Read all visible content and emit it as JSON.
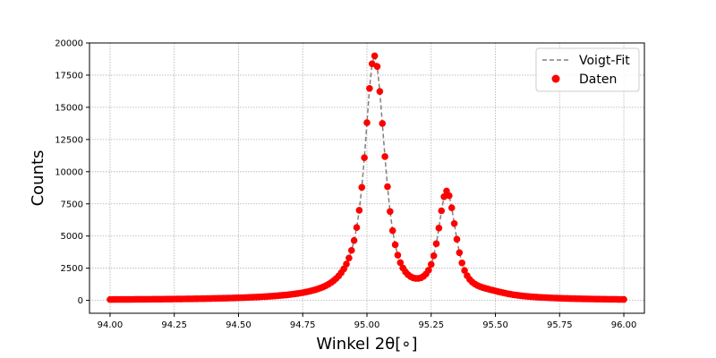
{
  "chart_data": {
    "type": "scatter",
    "xlabel": "Winkel 2θ[∘]",
    "ylabel": "Counts",
    "xlim": [
      93.92,
      96.08
    ],
    "ylim": [
      -1000,
      20000
    ],
    "xticks": [
      94.0,
      94.25,
      94.5,
      94.75,
      95.0,
      95.25,
      95.5,
      95.75,
      96.0
    ],
    "xtick_labels": [
      "94.00",
      "94.25",
      "94.50",
      "94.75",
      "95.00",
      "95.25",
      "95.50",
      "95.75",
      "96.00"
    ],
    "yticks": [
      0,
      2500,
      5000,
      7500,
      10000,
      12500,
      15000,
      17500,
      20000
    ],
    "ytick_labels": [
      "0",
      "2500",
      "5000",
      "7500",
      "10000",
      "12500",
      "15000",
      "17500",
      "20000"
    ],
    "grid": true,
    "legend_position": "top-right",
    "legend": [
      "Voigt-Fit",
      "Daten"
    ],
    "x_start": 94.0,
    "x_step": 0.01,
    "series": [
      {
        "name": "Voigt-Fit",
        "style": "dashed-line",
        "color": "#808080",
        "values": [
          69,
          69,
          70,
          71,
          72,
          73,
          74,
          75,
          76,
          77,
          79,
          80,
          81,
          83,
          84,
          86,
          87,
          89,
          90,
          92,
          94,
          96,
          98,
          100,
          102,
          104,
          106,
          108,
          111,
          113,
          116,
          119,
          121,
          124,
          127,
          131,
          134,
          137,
          141,
          145,
          149,
          153,
          157,
          162,
          167,
          172,
          177,
          182,
          188,
          194,
          201,
          208,
          215,
          222,
          230,
          239,
          248,
          257,
          267,
          278,
          289,
          301,
          314,
          328,
          342,
          358,
          375,
          393,
          412,
          433,
          455,
          479,
          506,
          534,
          565,
          600,
          637,
          678,
          724,
          775,
          832,
          896,
          968,
          1050,
          1144,
          1251,
          1376,
          1522,
          1695,
          1900,
          2148,
          2450,
          2823,
          3291,
          3885,
          4653,
          5662,
          7000,
          8781,
          11085,
          13805,
          16468,
          18379,
          19000,
          18172,
          16235,
          13743,
          11171,
          8838,
          6908,
          5421,
          4321,
          3518,
          2935,
          2514,
          2210,
          1994,
          1846,
          1752,
          1706,
          1705,
          1755,
          1864,
          2051,
          2347,
          2797,
          3461,
          4400,
          5618,
          6962,
          8054,
          8500,
          8135,
          7190,
          5969,
          4748,
          3707,
          2909,
          2328,
          1916,
          1626,
          1419,
          1270,
          1159,
          1073,
          1003,
          942,
          887,
          834,
          783,
          733,
          684,
          637,
          592,
          550,
          510,
          474,
          441,
          411,
          384,
          360,
          338,
          318,
          300,
          284,
          269,
          255,
          242,
          230,
          219,
          209,
          200,
          191,
          183,
          175,
          168,
          161,
          155,
          149,
          143,
          138,
          133,
          128,
          124,
          120,
          116,
          112,
          108,
          104,
          101,
          98,
          95,
          92,
          89,
          86,
          84,
          81,
          79,
          76,
          74,
          72
        ]
      },
      {
        "name": "Daten",
        "style": "markers",
        "color": "#ff0000",
        "values": [
          69,
          69,
          70,
          71,
          72,
          73,
          74,
          75,
          76,
          77,
          79,
          80,
          81,
          83,
          84,
          86,
          87,
          89,
          90,
          92,
          94,
          96,
          98,
          100,
          102,
          104,
          106,
          108,
          111,
          113,
          116,
          119,
          121,
          124,
          127,
          131,
          134,
          137,
          141,
          145,
          149,
          153,
          157,
          162,
          167,
          172,
          177,
          182,
          188,
          194,
          201,
          208,
          215,
          222,
          230,
          239,
          248,
          257,
          267,
          278,
          289,
          301,
          314,
          328,
          342,
          358,
          375,
          393,
          412,
          433,
          455,
          479,
          506,
          534,
          565,
          600,
          637,
          678,
          724,
          775,
          832,
          896,
          968,
          1050,
          1144,
          1251,
          1376,
          1522,
          1695,
          1900,
          2148,
          2450,
          2823,
          3291,
          3885,
          4653,
          5662,
          7000,
          8781,
          11085,
          13805,
          16468,
          18379,
          19000,
          18172,
          16235,
          13743,
          11171,
          8838,
          6908,
          5421,
          4321,
          3518,
          2935,
          2514,
          2210,
          1994,
          1846,
          1752,
          1706,
          1705,
          1755,
          1864,
          2051,
          2347,
          2797,
          3461,
          4400,
          5618,
          6962,
          8054,
          8500,
          8135,
          7190,
          5969,
          4748,
          3707,
          2909,
          2328,
          1916,
          1626,
          1419,
          1270,
          1159,
          1073,
          1003,
          942,
          887,
          834,
          783,
          733,
          684,
          637,
          592,
          550,
          510,
          474,
          441,
          411,
          384,
          360,
          338,
          318,
          300,
          284,
          269,
          255,
          242,
          230,
          219,
          209,
          200,
          191,
          183,
          175,
          168,
          161,
          155,
          149,
          143,
          138,
          133,
          128,
          124,
          120,
          116,
          112,
          108,
          104,
          101,
          98,
          95,
          92,
          89,
          86,
          84,
          81,
          79,
          76,
          74,
          72
        ]
      }
    ]
  }
}
